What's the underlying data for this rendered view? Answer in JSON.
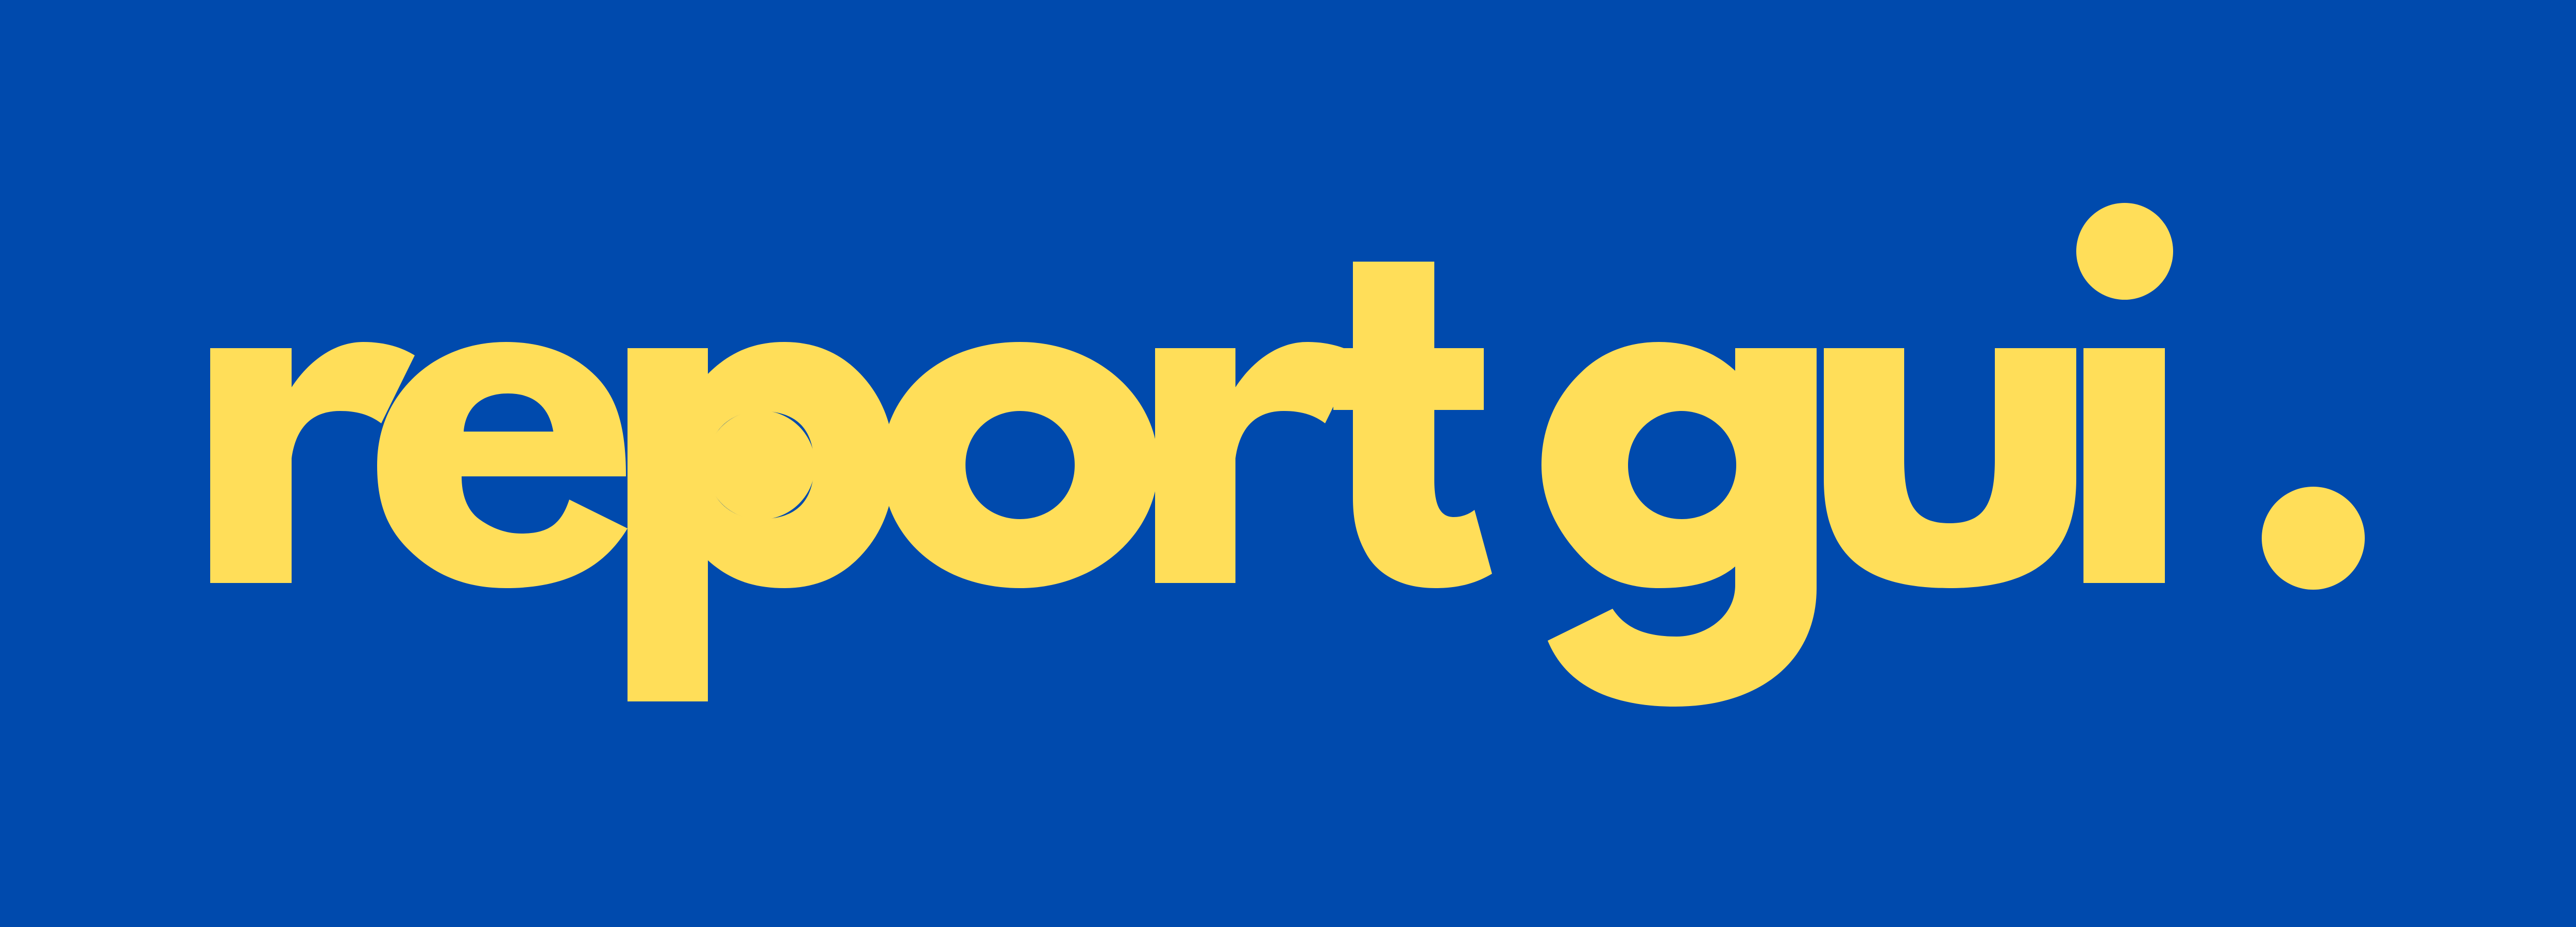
{
  "logo": {
    "word1": "report",
    "word2": "gui",
    "punctuation": "."
  },
  "colors": {
    "background": "#004AAD",
    "logo_fill": "#FFDE59"
  }
}
